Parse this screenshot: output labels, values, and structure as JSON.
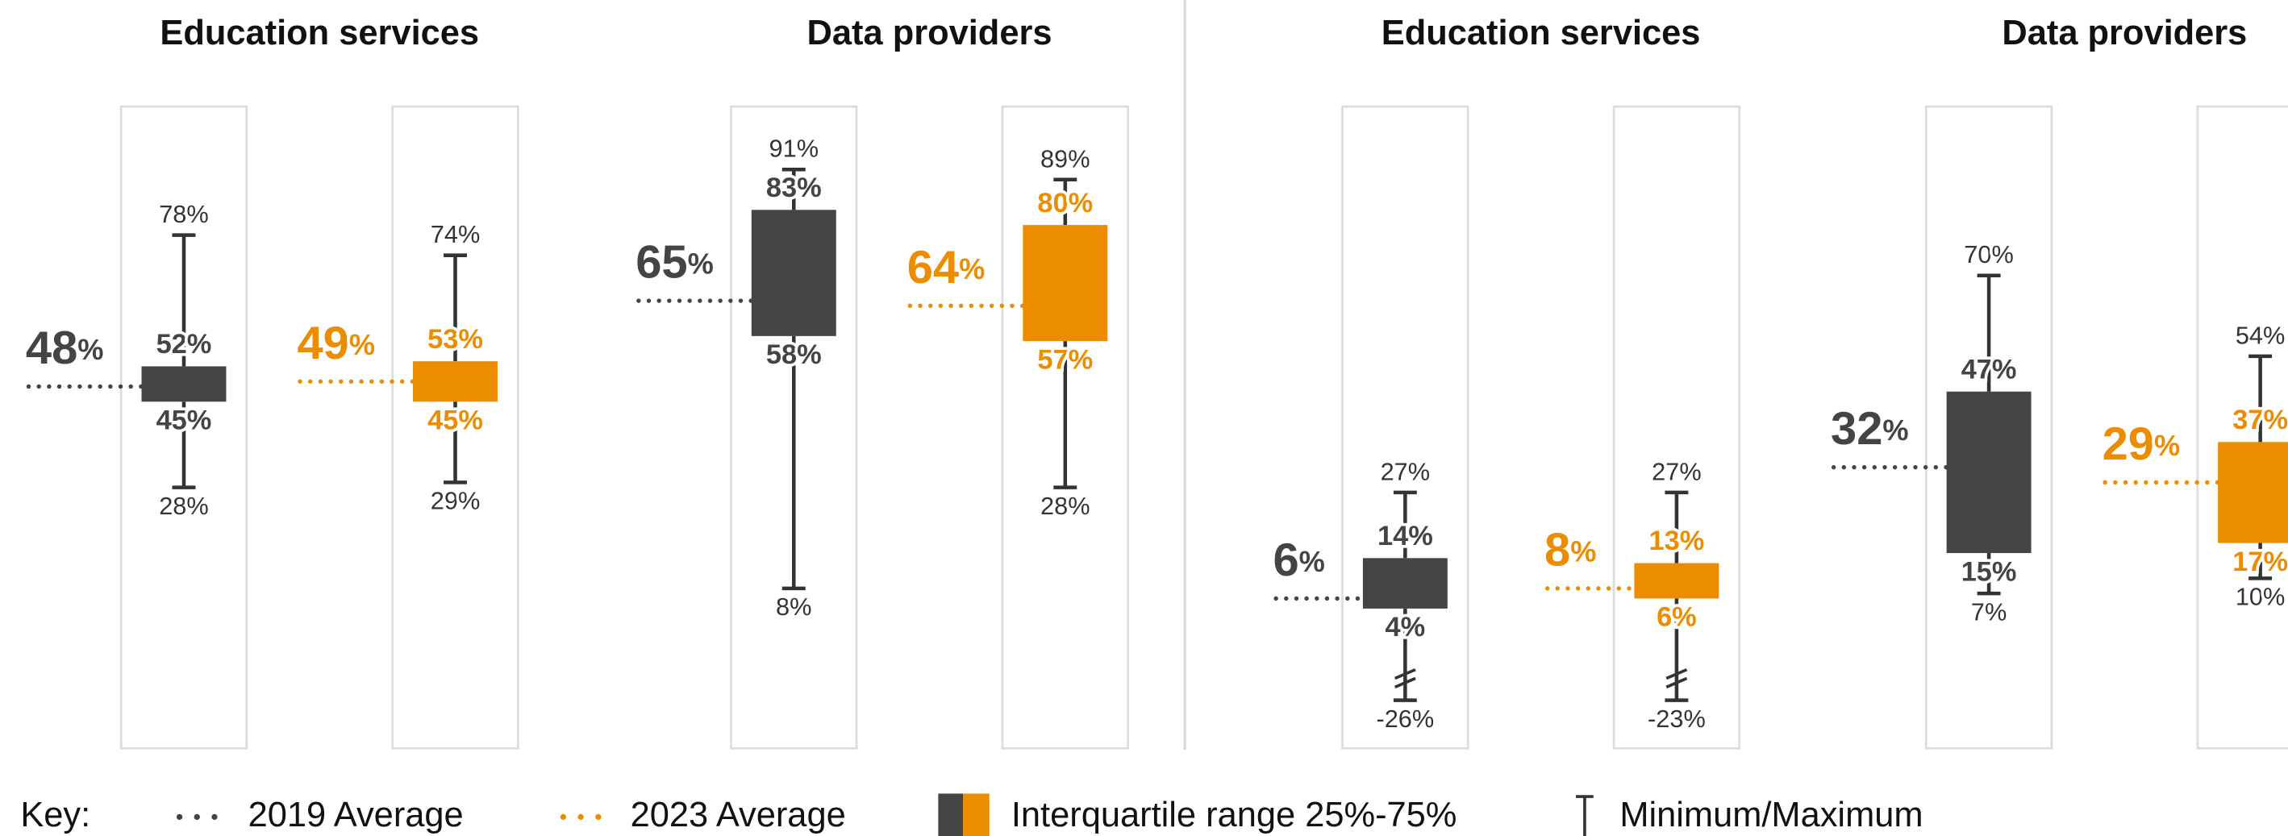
{
  "chart_data": [
    {
      "type": "box",
      "unit": "%",
      "groups": [
        {
          "title": "Education services",
          "series": [
            {
              "color": "#444444",
              "average": 48,
              "max": 78,
              "q3": 52,
              "q1": 45,
              "min": 28
            },
            {
              "color": "#ec8c00",
              "average": 49,
              "max": 74,
              "q3": 53,
              "q1": 45,
              "min": 29
            }
          ]
        },
        {
          "title": "Data providers",
          "series": [
            {
              "color": "#444444",
              "average": 65,
              "max": 91,
              "q3": 83,
              "q1": 58,
              "min": 8
            },
            {
              "color": "#ec8c00",
              "average": 64,
              "max": 89,
              "q3": 80,
              "q1": 57,
              "min": 28
            }
          ]
        }
      ]
    },
    {
      "type": "box",
      "unit": "%",
      "groups": [
        {
          "title": "Education services",
          "series": [
            {
              "color": "#444444",
              "average": 6,
              "max": 27,
              "q3": 14,
              "q1": 4,
              "min": -26
            },
            {
              "color": "#ec8c00",
              "average": 8,
              "max": 27,
              "q3": 13,
              "q1": 6,
              "min": -23
            }
          ]
        },
        {
          "title": "Data providers",
          "series": [
            {
              "color": "#444444",
              "average": 32,
              "max": 70,
              "q3": 47,
              "q1": 15,
              "min": 7
            },
            {
              "color": "#ec8c00",
              "average": 29,
              "max": 54,
              "q3": 37,
              "q1": 17,
              "min": 10
            }
          ]
        }
      ]
    }
  ],
  "key": {
    "label": "Key:",
    "colors": [
      "#444444",
      "#ec8c00"
    ],
    "items": [
      "2019 Average",
      "2023 Average",
      "Interquartile range 25%-75%",
      "Minimum/Maximum"
    ]
  }
}
